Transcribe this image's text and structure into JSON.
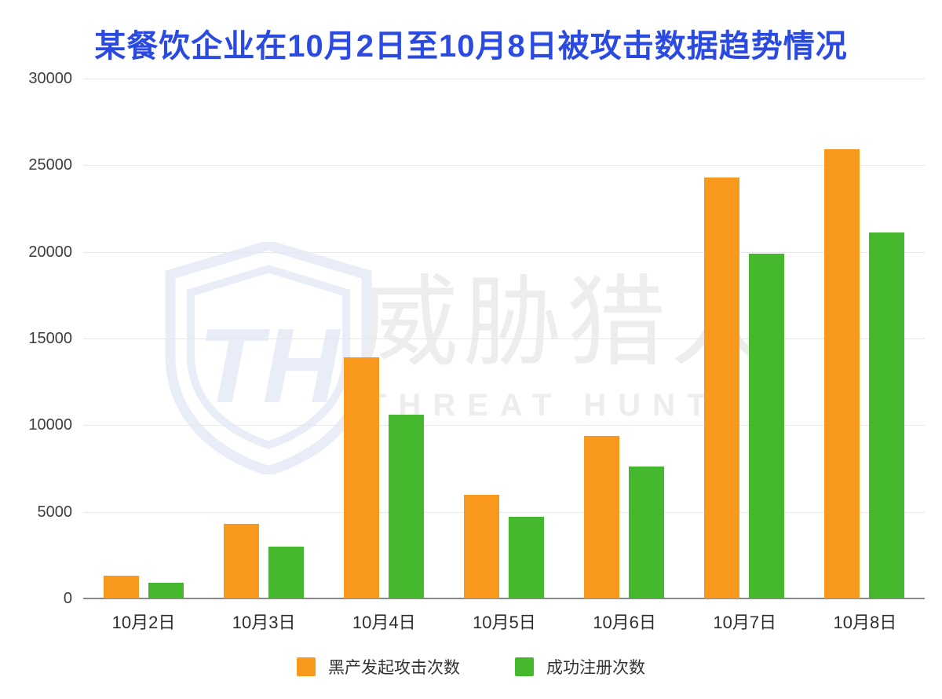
{
  "title": "某餐饮企业在10月2日至10月8日被攻击数据趋势情况",
  "colors": {
    "title": "#2B4AE2",
    "series_attack": "#F8981D",
    "series_register": "#45B82E",
    "axis_text": "#3D3D3D",
    "x_label_text": "#2E2E2E",
    "gridline": "#E8E8E8",
    "axis_line": "#8A8A8A",
    "legend_text": "#333333",
    "watermark_text": "#EDEDED",
    "watermark_shield": "#E8EDF8"
  },
  "watermark": {
    "monogram": "TH",
    "name_cn": "威胁猎人",
    "name_en": "THREAT HUNTER"
  },
  "legend": {
    "items": [
      {
        "label": "黑产发起攻击次数",
        "color": "#F8981D"
      },
      {
        "label": "成功注册次数",
        "color": "#45B82E"
      }
    ]
  },
  "chart_data": {
    "type": "bar",
    "title": "某餐饮企业在10月2日至10月8日被攻击数据趋势情况",
    "categories": [
      "10月2日",
      "10月3日",
      "10月4日",
      "10月5日",
      "10月6日",
      "10月7日",
      "10月8日"
    ],
    "series": [
      {
        "name": "黑产发起攻击次数",
        "color": "#F8981D",
        "values": [
          1300,
          4300,
          13900,
          6000,
          9400,
          24300,
          25900
        ]
      },
      {
        "name": "成功注册次数",
        "color": "#45B82E",
        "values": [
          900,
          3000,
          10600,
          4700,
          7600,
          19900,
          21100
        ]
      }
    ],
    "xlabel": "",
    "ylabel": "",
    "ylim": [
      0,
      30000
    ],
    "ytick_step": 5000,
    "yticks": [
      0,
      5000,
      10000,
      15000,
      20000,
      25000,
      30000
    ],
    "grid": true,
    "legend_position": "bottom"
  }
}
